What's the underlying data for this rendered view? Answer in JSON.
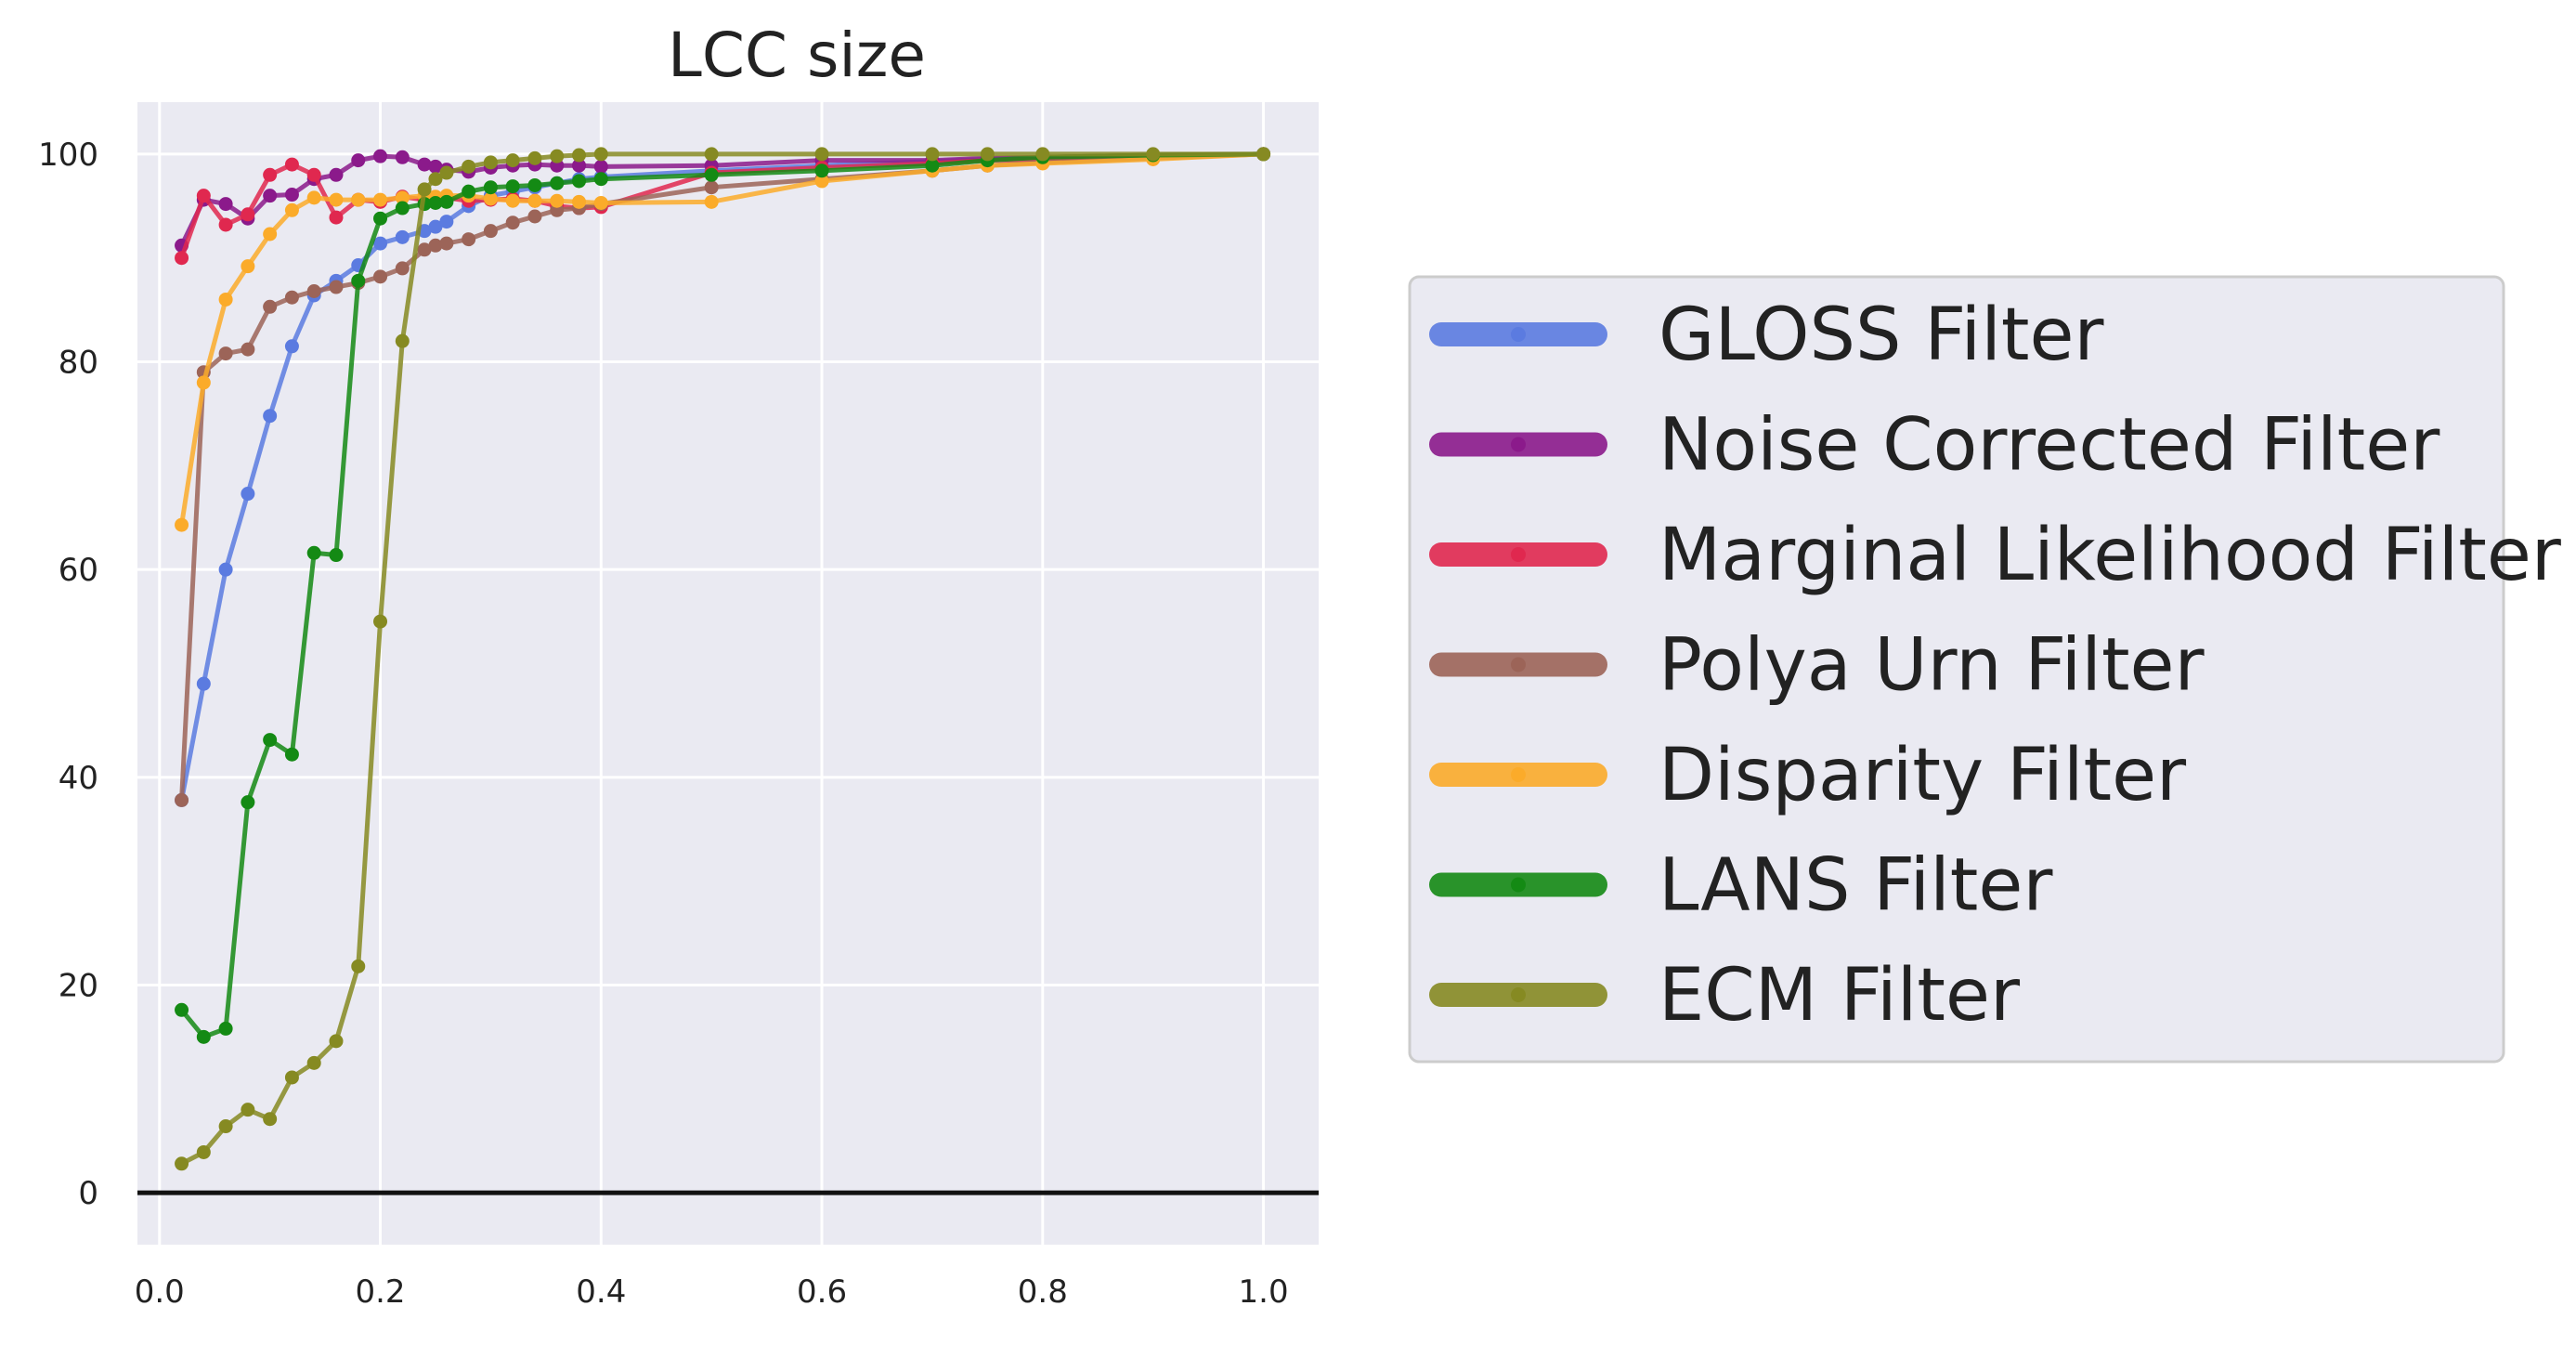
{
  "chart_data": {
    "type": "line",
    "title": "LCC size",
    "xlabel": "",
    "ylabel": "",
    "xlim": [
      -0.02,
      1.05
    ],
    "ylim": [
      -5,
      105
    ],
    "xticks": [
      0.0,
      0.2,
      0.4,
      0.6,
      0.8,
      1.0
    ],
    "xtick_labels": [
      "0.0",
      "0.2",
      "0.4",
      "0.6",
      "0.8",
      "1.0"
    ],
    "yticks": [
      0,
      20,
      40,
      60,
      80,
      100
    ],
    "ytick_labels": [
      "0",
      "20",
      "40",
      "60",
      "80",
      "100"
    ],
    "grid": true,
    "legend_position": "right",
    "background": "#eaeaf2",
    "series": [
      {
        "name": "GLOSS Filter",
        "color": "#5b7be0",
        "x": [
          0.02,
          0.04,
          0.06,
          0.08,
          0.1,
          0.12,
          0.14,
          0.16,
          0.18,
          0.2,
          0.22,
          0.24,
          0.25,
          0.26,
          0.28,
          0.3,
          0.32,
          0.34,
          0.36,
          0.38,
          0.4,
          0.5,
          0.6,
          0.7,
          0.75,
          0.8,
          0.9,
          1.0
        ],
        "y": [
          37.8,
          49,
          60,
          67.3,
          74.8,
          81.5,
          86.4,
          87.8,
          89.3,
          91.4,
          92,
          92.6,
          93,
          93.5,
          95,
          96,
          96.4,
          96.8,
          97.2,
          97.6,
          97.8,
          98.4,
          98.9,
          99.3,
          99.5,
          99.7,
          99.9,
          100
        ]
      },
      {
        "name": "Noise Corrected Filter",
        "color": "#8b1a8b",
        "x": [
          0.02,
          0.04,
          0.06,
          0.08,
          0.1,
          0.12,
          0.14,
          0.16,
          0.18,
          0.2,
          0.22,
          0.24,
          0.25,
          0.26,
          0.28,
          0.3,
          0.32,
          0.34,
          0.36,
          0.38,
          0.4,
          0.5,
          0.6,
          0.7,
          0.75,
          0.8,
          0.9,
          1.0
        ],
        "y": [
          91.2,
          95.6,
          95.2,
          93.8,
          96,
          96.1,
          97.6,
          98,
          99.4,
          99.8,
          99.7,
          99,
          98.8,
          98.5,
          98.3,
          98.7,
          98.9,
          99,
          98.9,
          98.9,
          98.8,
          98.9,
          99.4,
          99.4,
          99.6,
          99.7,
          99.9,
          100
        ]
      },
      {
        "name": "Marginal Likelihood Filter",
        "color": "#e0284f",
        "x": [
          0.02,
          0.04,
          0.06,
          0.08,
          0.1,
          0.12,
          0.14,
          0.16,
          0.18,
          0.2,
          0.22,
          0.24,
          0.25,
          0.26,
          0.28,
          0.3,
          0.32,
          0.34,
          0.36,
          0.38,
          0.4,
          0.5,
          0.6,
          0.7,
          0.75,
          0.8,
          0.9,
          1.0
        ],
        "y": [
          90,
          96,
          93.2,
          94.2,
          98,
          99,
          98,
          93.9,
          95.6,
          95.4,
          95.9,
          95.6,
          95.7,
          95.8,
          95.5,
          95.6,
          95.7,
          95.5,
          95,
          94.8,
          94.9,
          98.2,
          98.7,
          99.1,
          99.4,
          99.5,
          99.8,
          100
        ]
      },
      {
        "name": "Polya Urn Filter",
        "color": "#9c6458",
        "x": [
          0.02,
          0.04,
          0.06,
          0.08,
          0.1,
          0.12,
          0.14,
          0.16,
          0.18,
          0.2,
          0.22,
          0.24,
          0.25,
          0.26,
          0.28,
          0.3,
          0.32,
          0.34,
          0.36,
          0.38,
          0.4,
          0.5,
          0.6,
          0.7,
          0.75,
          0.8,
          0.9,
          1.0
        ],
        "y": [
          37.8,
          79,
          80.8,
          81.2,
          85.3,
          86.2,
          86.8,
          87.2,
          87.6,
          88.2,
          89,
          90.8,
          91.2,
          91.4,
          91.8,
          92.6,
          93.4,
          94,
          94.6,
          94.8,
          95.2,
          96.8,
          97.6,
          98.4,
          98.9,
          99.2,
          99.6,
          100
        ]
      },
      {
        "name": "Disparity Filter",
        "color": "#fbab2a",
        "x": [
          0.02,
          0.04,
          0.06,
          0.08,
          0.1,
          0.12,
          0.14,
          0.16,
          0.18,
          0.2,
          0.22,
          0.24,
          0.25,
          0.26,
          0.28,
          0.3,
          0.32,
          0.34,
          0.36,
          0.38,
          0.4,
          0.5,
          0.6,
          0.7,
          0.75,
          0.8,
          0.9,
          1.0
        ],
        "y": [
          64.3,
          78,
          86,
          89.2,
          92.3,
          94.6,
          95.8,
          95.6,
          95.6,
          95.6,
          95.8,
          96,
          95.9,
          96,
          96,
          95.7,
          95.5,
          95.5,
          95.5,
          95.4,
          95.3,
          95.4,
          97.4,
          98.4,
          98.9,
          99.1,
          99.5,
          100
        ]
      },
      {
        "name": "LANS Filter",
        "color": "#148a14",
        "x": [
          0.02,
          0.04,
          0.06,
          0.08,
          0.1,
          0.12,
          0.14,
          0.16,
          0.18,
          0.2,
          0.22,
          0.24,
          0.25,
          0.26,
          0.28,
          0.3,
          0.32,
          0.34,
          0.36,
          0.38,
          0.4,
          0.5,
          0.6,
          0.7,
          0.75,
          0.8,
          0.9,
          1.0
        ],
        "y": [
          17.6,
          15,
          15.8,
          37.6,
          43.6,
          42.2,
          61.6,
          61.4,
          87.8,
          93.8,
          94.8,
          95.2,
          95.3,
          95.4,
          96.4,
          96.8,
          96.9,
          97,
          97.2,
          97.4,
          97.6,
          98,
          98.4,
          98.9,
          99.4,
          99.7,
          99.9,
          100
        ]
      },
      {
        "name": "ECM Filter",
        "color": "#868a22",
        "x": [
          0.02,
          0.04,
          0.06,
          0.08,
          0.1,
          0.12,
          0.14,
          0.16,
          0.18,
          0.2,
          0.22,
          0.24,
          0.25,
          0.26,
          0.28,
          0.3,
          0.32,
          0.34,
          0.36,
          0.38,
          0.4,
          0.5,
          0.6,
          0.7,
          0.75,
          0.8,
          0.9,
          1.0
        ],
        "y": [
          2.8,
          3.9,
          6.4,
          8,
          7.1,
          11.1,
          12.5,
          14.6,
          21.8,
          55,
          82,
          96.6,
          97.6,
          98.2,
          98.8,
          99.2,
          99.4,
          99.6,
          99.8,
          99.9,
          100,
          100,
          100,
          100,
          100,
          100,
          100,
          100
        ]
      }
    ]
  }
}
